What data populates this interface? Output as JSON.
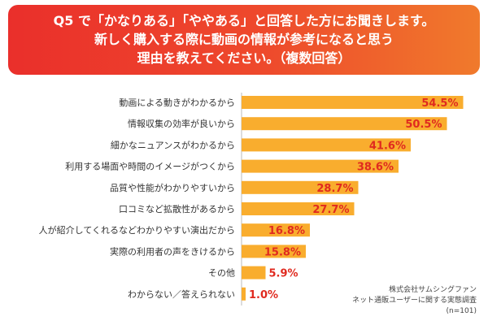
{
  "header": {
    "title_lines": [
      "Q5 で「かなりある」「ややある」と回答した方にお聞きします。",
      "新しく購入する際に動画の情報が参考になると思う",
      "理由を教えてください。（複数回答）"
    ]
  },
  "chart_data": {
    "type": "bar",
    "orientation": "horizontal",
    "categories": [
      "動画による動きがわかるから",
      "情報収集の効率が良いから",
      "細かなニュアンスがわかるから",
      "利用する場面や時間のイメージがつくから",
      "品質や性能がわかりやすいから",
      "口コミなど拡散性があるから",
      "人が紹介してくれるなどわかりやすい演出だから",
      "実際の利用者の声をきけるから",
      "その他",
      "わからない／答えられない"
    ],
    "values": [
      54.5,
      50.5,
      41.6,
      38.6,
      28.7,
      27.7,
      16.8,
      15.8,
      5.9,
      1.0
    ],
    "value_labels": [
      "54.5%",
      "50.5%",
      "41.6%",
      "38.6%",
      "28.7%",
      "27.7%",
      "16.8%",
      "15.8%",
      "5.9%",
      "1.0%"
    ],
    "xlim": [
      0,
      60
    ],
    "grid": false,
    "bar_color": "#f9ad2e",
    "label_color": "#e02a1f"
  },
  "source_note": {
    "lines": [
      "株式会社サムシングファン",
      "ネット通販ユーザーに関する実態調査",
      "(n=101)"
    ]
  }
}
